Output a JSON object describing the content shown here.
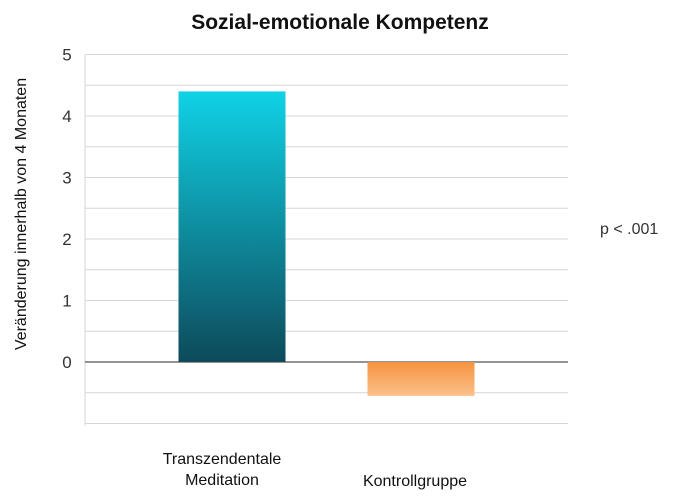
{
  "chart_data": {
    "type": "bar",
    "title": "Sozial-emotionale Kompetenz",
    "xlabel": "",
    "ylabel": "Veränderung innerhalb von 4 Monaten",
    "categories": [
      "Transzendentale Meditation",
      "Kontrollgruppe"
    ],
    "category_lines": [
      [
        "Transzendentale",
        "Meditation"
      ],
      [
        "Kontrollgruppe"
      ]
    ],
    "values": [
      4.4,
      -0.55
    ],
    "ylim": [
      -1,
      5
    ],
    "yticks": [
      0,
      1,
      2,
      3,
      4,
      5
    ],
    "grid": true,
    "annotation": "p < .001",
    "colors": {
      "bar1_top": "#10d2e6",
      "bar1_bottom": "#0d4a5a",
      "bar2_top": "#f59440",
      "bar2_bottom": "#fbc08a"
    }
  }
}
